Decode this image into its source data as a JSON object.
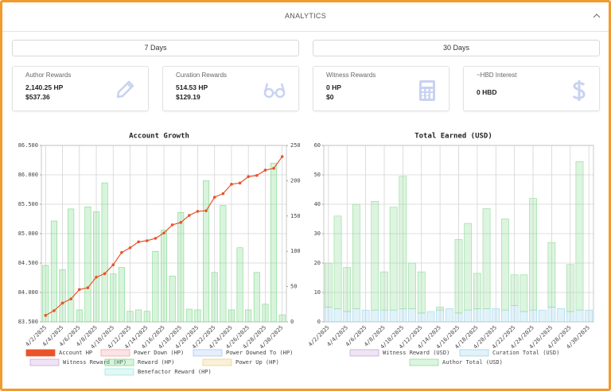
{
  "header": {
    "title": "ANALYTICS"
  },
  "periods": [
    "7 Days",
    "30 Days"
  ],
  "cards": [
    {
      "label": "Author Rewards",
      "lines": [
        "2,140.25 HP",
        "$537.36"
      ]
    },
    {
      "label": "Curation Rewards",
      "lines": [
        "514.53 HP",
        "$129.19"
      ]
    },
    {
      "label": "Witness Rewards",
      "lines": [
        "0 HP",
        "$0"
      ]
    },
    {
      "label": "~HBD Interest",
      "lines": [
        "0 HBD"
      ]
    }
  ],
  "chart_data": [
    {
      "type": "combo",
      "title": "Account Growth",
      "categories": [
        "4/2/2025",
        null,
        "4/4/2025",
        null,
        "4/6/2025",
        null,
        "4/8/2025",
        null,
        "4/10/2025",
        null,
        "4/12/2025",
        null,
        "4/14/2025",
        null,
        "4/16/2025",
        null,
        "4/18/2025",
        null,
        "4/20/2025",
        null,
        "4/22/2025",
        null,
        "4/24/2025",
        null,
        "4/26/2025",
        null,
        "4/28/2025",
        null,
        "4/30/2025"
      ],
      "ylim": [
        83.5,
        86.5
      ],
      "yticks": [
        {
          "value": 83.5,
          "label": "83.500"
        },
        {
          "value": 84,
          "label": "84.000"
        },
        {
          "value": 84.5,
          "label": "84.500"
        },
        {
          "value": 85,
          "label": "85.000"
        },
        {
          "value": 85.5,
          "label": "85.500"
        },
        {
          "value": 86,
          "label": "86.000"
        },
        {
          "value": 86.5,
          "label": "86.500"
        }
      ],
      "y2lim": [
        0,
        250
      ],
      "y2ticks": [
        0,
        50,
        100,
        150,
        200,
        250
      ],
      "grid": true,
      "series": [
        {
          "name": "Account HP",
          "type": "line",
          "color": "#e8542a",
          "values": [
            83.61,
            83.69,
            83.82,
            83.89,
            84.05,
            84.08,
            84.26,
            84.32,
            84.47,
            84.68,
            84.76,
            84.86,
            84.88,
            84.92,
            85.01,
            85.15,
            85.19,
            85.31,
            85.38,
            85.39,
            85.62,
            85.68,
            85.84,
            85.86,
            85.97,
            85.99,
            86.08,
            86.11,
            86.31
          ]
        },
        {
          "name": "Power Down (HP)",
          "color": "#f4a3a8"
        },
        {
          "name": "Power Downed To (HP)",
          "color": "#a8c8f0"
        },
        {
          "name": "Witness Reward (HP)",
          "color": "#c9a7d8"
        },
        {
          "name": "Reward (HP)",
          "type": "bar",
          "axis": "y2",
          "color": "#7ed98a",
          "values": [
            80,
            143,
            74,
            160,
            17,
            163,
            156,
            197,
            68,
            77,
            15,
            17,
            15,
            100,
            130,
            65,
            155,
            18,
            17,
            200,
            70,
            165,
            17,
            105,
            17,
            70,
            25,
            225,
            10
          ]
        },
        {
          "name": "Power Up (HP)",
          "color": "#f0d080"
        },
        {
          "name": "Benefactor Reward (HP)",
          "color": "#9de8e0"
        }
      ]
    },
    {
      "type": "bar",
      "title": "Total Earned (USD)",
      "stacked": true,
      "categories": [
        "4/2/2025",
        null,
        "4/4/2025",
        null,
        "4/6/2025",
        null,
        "4/8/2025",
        null,
        "4/10/2025",
        null,
        "4/12/2025",
        null,
        "4/14/2025",
        null,
        "4/16/2025",
        null,
        "4/18/2025",
        null,
        "4/20/2025",
        null,
        "4/22/2025",
        null,
        "4/24/2025",
        null,
        "4/26/2025",
        null,
        "4/28/2025",
        null,
        "4/30/2025"
      ],
      "ylim": [
        0,
        60
      ],
      "yticks": [
        0,
        10,
        20,
        30,
        40,
        50,
        60
      ],
      "grid": true,
      "series": [
        {
          "name": "Witness Reward (USD)",
          "color": "#c9a7d8"
        },
        {
          "name": "Curation Total (USD)",
          "color": "#9fd4ec",
          "values": [
            5,
            4.5,
            3.5,
            4.5,
            4,
            4,
            4,
            4,
            4.5,
            4.5,
            3,
            3.5,
            4,
            4.5,
            3,
            4,
            4.5,
            4.5,
            4.5,
            4,
            5.5,
            3.5,
            4,
            4,
            5,
            4.5,
            3.5,
            4,
            4
          ]
        },
        {
          "name": "Author Total (USD)",
          "color": "#8fdc98",
          "values": [
            15,
            31.5,
            15,
            35.5,
            0,
            37,
            13,
            35,
            45,
            15.5,
            14,
            0,
            1,
            0,
            25,
            29.5,
            12,
            34,
            0,
            31,
            10.5,
            12.5,
            38,
            0,
            22,
            0,
            16,
            50.5,
            0
          ]
        }
      ]
    }
  ]
}
